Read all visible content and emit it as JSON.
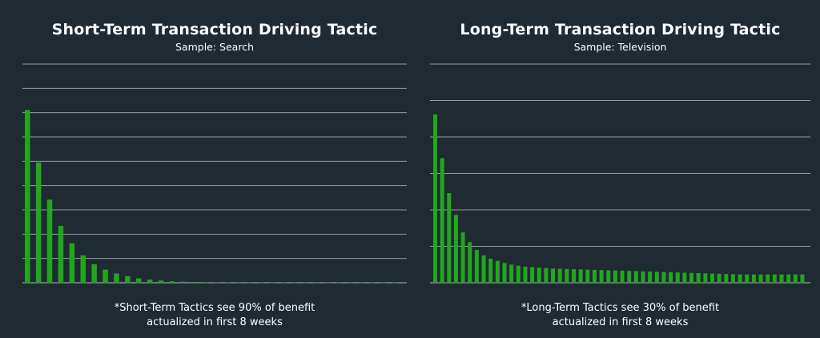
{
  "chart_data": [
    {
      "type": "bar",
      "title": "Short-Term Transaction Driving Tactic",
      "subtitle": "Sample: Search",
      "xlabel": "",
      "ylabel": "",
      "ylim": [
        0,
        100
      ],
      "grid": true,
      "bar_color": "#22a61e",
      "grid_color": "#aab4bb",
      "values": [
        79,
        55,
        38,
        26,
        18,
        12.5,
        8.5,
        6,
        4.2,
        3,
        2,
        1.4,
        1,
        0.7,
        0.5,
        0.35,
        0.25,
        0.2,
        0.15,
        0.12,
        0.1,
        0.1,
        0.1,
        0.1,
        0.1,
        0.1,
        0.1,
        0.1,
        0.1,
        0.1,
        0.1,
        0.1,
        0.1,
        0.1
      ],
      "footnote": [
        "*Short-Term Tactics see 90% of benefit",
        "actualized in first 8 weeks"
      ]
    },
    {
      "type": "bar",
      "title": "Long-Term Transaction Driving Tactic",
      "subtitle": "Sample: Television",
      "xlabel": "",
      "ylabel": "",
      "ylim": [
        0,
        100
      ],
      "grid": true,
      "bar_color": "#22a61e",
      "grid_color": "#aab4bb",
      "values": [
        77,
        57,
        41,
        31,
        23,
        18.5,
        15,
        12.5,
        11,
        10,
        9,
        8.3,
        7.8,
        7.4,
        7.1,
        6.9,
        6.7,
        6.5,
        6.4,
        6.3,
        6.2,
        6.1,
        6.0,
        5.9,
        5.8,
        5.7,
        5.6,
        5.5,
        5.4,
        5.3,
        5.2,
        5.1,
        5.0,
        4.9,
        4.8,
        4.7,
        4.6,
        4.5,
        4.4,
        4.3,
        4.2,
        4.1,
        4.0,
        3.9,
        3.8,
        3.8,
        3.8,
        3.8,
        3.8,
        3.8,
        3.8,
        3.8,
        3.8,
        3.8
      ],
      "footnote": [
        "*Long-Term Tactics see 30% of benefit",
        "actualized in first 8 weeks"
      ]
    }
  ]
}
